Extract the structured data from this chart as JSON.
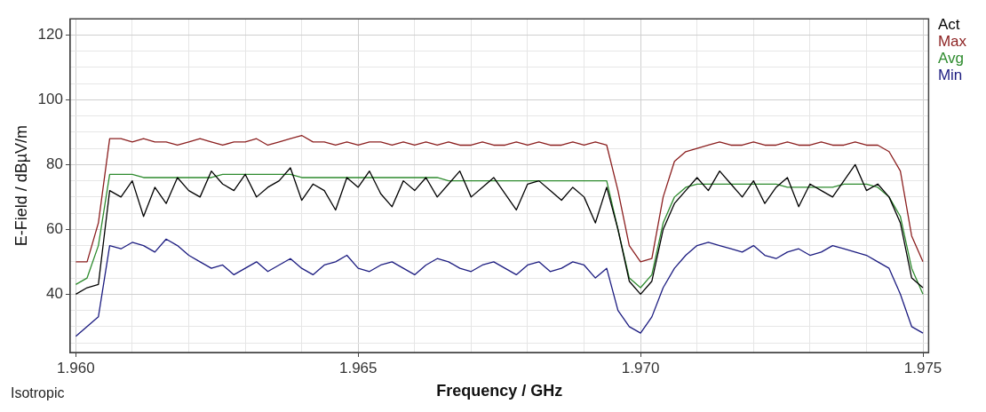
{
  "chart_data": {
    "type": "line",
    "xlabel": "Frequency / GHz",
    "ylabel": "E-Field / dBµV/m",
    "annotations": [
      "Isotropic"
    ],
    "x": [
      1.96,
      1.9602,
      1.9604,
      1.9606,
      1.9608,
      1.961,
      1.9612,
      1.9614,
      1.9616,
      1.9618,
      1.962,
      1.9622,
      1.9624,
      1.9626,
      1.9628,
      1.963,
      1.9632,
      1.9634,
      1.9636,
      1.9638,
      1.964,
      1.9642,
      1.9644,
      1.9646,
      1.9648,
      1.965,
      1.9652,
      1.9654,
      1.9656,
      1.9658,
      1.966,
      1.9662,
      1.9664,
      1.9666,
      1.9668,
      1.967,
      1.9672,
      1.9674,
      1.9676,
      1.9678,
      1.968,
      1.9682,
      1.9684,
      1.9686,
      1.9688,
      1.969,
      1.9692,
      1.9694,
      1.9696,
      1.9698,
      1.97,
      1.9702,
      1.9704,
      1.9706,
      1.9708,
      1.971,
      1.9712,
      1.9714,
      1.9716,
      1.9718,
      1.972,
      1.9722,
      1.9724,
      1.9726,
      1.9728,
      1.973,
      1.9732,
      1.9734,
      1.9736,
      1.9738,
      1.974,
      1.9742,
      1.9744,
      1.9746,
      1.9748,
      1.975
    ],
    "series": [
      {
        "name": "Act",
        "color": "#000000",
        "values": [
          40,
          42,
          43,
          72,
          70,
          75,
          64,
          73,
          68,
          76,
          72,
          70,
          78,
          74,
          72,
          77,
          70,
          73,
          75,
          79,
          69,
          74,
          72,
          66,
          76,
          73,
          78,
          71,
          67,
          75,
          72,
          76,
          70,
          74,
          78,
          70,
          73,
          76,
          71,
          66,
          74,
          75,
          72,
          69,
          73,
          70,
          62,
          73,
          60,
          44,
          40,
          44,
          60,
          68,
          72,
          76,
          72,
          78,
          74,
          70,
          75,
          68,
          73,
          76,
          67,
          74,
          72,
          70,
          75,
          80,
          72,
          74,
          70,
          62,
          45,
          42
        ]
      },
      {
        "name": "Max",
        "color": "#8b1f1f",
        "values": [
          50,
          50,
          62,
          88,
          88,
          87,
          88,
          87,
          87,
          86,
          87,
          88,
          87,
          86,
          87,
          87,
          88,
          86,
          87,
          88,
          89,
          87,
          87,
          86,
          87,
          86,
          87,
          87,
          86,
          87,
          86,
          87,
          86,
          87,
          86,
          86,
          87,
          86,
          86,
          87,
          86,
          87,
          86,
          86,
          87,
          86,
          87,
          86,
          72,
          55,
          50,
          51,
          70,
          81,
          84,
          85,
          86,
          87,
          86,
          86,
          87,
          86,
          86,
          87,
          86,
          86,
          87,
          86,
          86,
          87,
          86,
          86,
          84,
          78,
          58,
          50
        ]
      },
      {
        "name": "Avg",
        "color": "#2e8b2e",
        "values": [
          43,
          45,
          55,
          77,
          77,
          77,
          76,
          76,
          76,
          76,
          76,
          76,
          76,
          77,
          77,
          77,
          77,
          77,
          77,
          77,
          76,
          76,
          76,
          76,
          76,
          76,
          76,
          76,
          76,
          76,
          76,
          76,
          76,
          75,
          75,
          75,
          75,
          75,
          75,
          75,
          75,
          75,
          75,
          75,
          75,
          75,
          75,
          75,
          60,
          45,
          42,
          46,
          62,
          70,
          73,
          74,
          74,
          74,
          74,
          74,
          74,
          74,
          74,
          73,
          73,
          73,
          73,
          73,
          74,
          74,
          74,
          73,
          70,
          64,
          48,
          40
        ]
      },
      {
        "name": "Min",
        "color": "#1c1c80",
        "values": [
          27,
          30,
          33,
          55,
          54,
          56,
          55,
          53,
          57,
          55,
          52,
          50,
          48,
          49,
          46,
          48,
          50,
          47,
          49,
          51,
          48,
          46,
          49,
          50,
          52,
          48,
          47,
          49,
          50,
          48,
          46,
          49,
          51,
          50,
          48,
          47,
          49,
          50,
          48,
          46,
          49,
          50,
          47,
          48,
          50,
          49,
          45,
          48,
          35,
          30,
          28,
          33,
          42,
          48,
          52,
          55,
          56,
          55,
          54,
          53,
          55,
          52,
          51,
          53,
          54,
          52,
          53,
          55,
          54,
          53,
          52,
          50,
          48,
          40,
          30,
          28
        ]
      }
    ],
    "xlim": [
      1.9599,
      1.9751
    ],
    "xticks": [
      {
        "value": 1.96,
        "label": "1.960"
      },
      {
        "value": 1.961,
        "label": null
      },
      {
        "value": 1.962,
        "label": null
      },
      {
        "value": 1.963,
        "label": null
      },
      {
        "value": 1.964,
        "label": null
      },
      {
        "value": 1.965,
        "label": "1.965"
      },
      {
        "value": 1.966,
        "label": null
      },
      {
        "value": 1.967,
        "label": null
      },
      {
        "value": 1.968,
        "label": null
      },
      {
        "value": 1.969,
        "label": null
      },
      {
        "value": 1.97,
        "label": "1.970"
      },
      {
        "value": 1.971,
        "label": null
      },
      {
        "value": 1.972,
        "label": null
      },
      {
        "value": 1.973,
        "label": null
      },
      {
        "value": 1.974,
        "label": null
      },
      {
        "value": 1.975,
        "label": "1.975"
      }
    ],
    "ylim": [
      22,
      125
    ],
    "yticks": [
      {
        "value": 25,
        "label": null
      },
      {
        "value": 30,
        "label": null
      },
      {
        "value": 35,
        "label": null
      },
      40,
      {
        "value": 45,
        "label": null
      },
      {
        "value": 50,
        "label": null
      },
      {
        "value": 55,
        "label": null
      },
      60,
      {
        "value": 65,
        "label": null
      },
      {
        "value": 70,
        "label": null
      },
      {
        "value": 75,
        "label": null
      },
      80,
      {
        "value": 85,
        "label": null
      },
      {
        "value": 90,
        "label": null
      },
      {
        "value": 95,
        "label": null
      },
      100,
      {
        "value": 105,
        "label": null
      },
      {
        "value": 110,
        "label": null
      },
      {
        "value": 115,
        "label": null
      },
      120
    ],
    "grid": true,
    "legend": "top right",
    "marker": "none",
    "line_style": "solid"
  }
}
